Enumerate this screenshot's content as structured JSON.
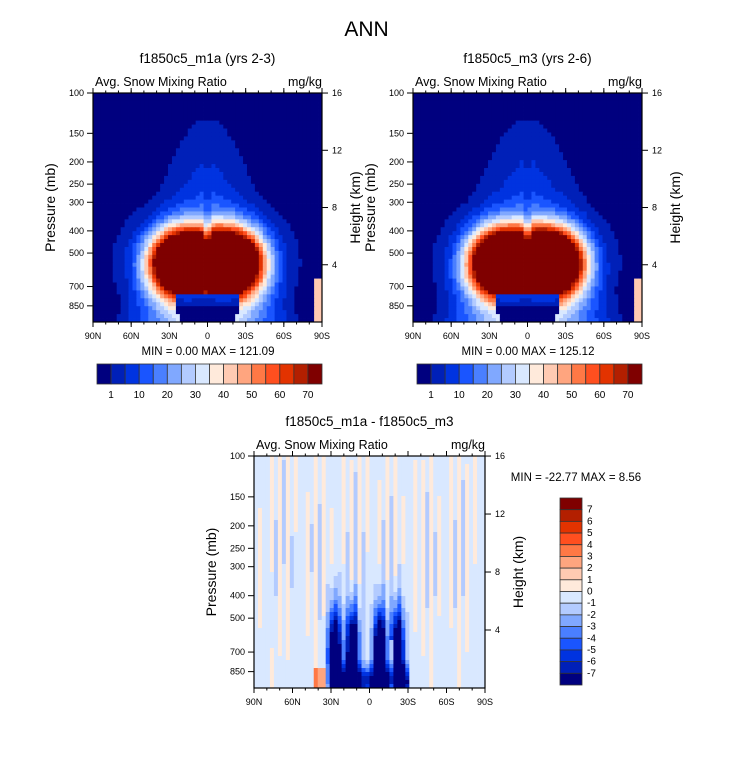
{
  "figure": {
    "main_title": "ANN"
  },
  "chart_data": [
    {
      "type": "heatmap",
      "id": "panel_m1a",
      "title": "f1850c5_m1a (yrs 2-3)",
      "left_string": "Avg. Snow Mixing Ratio",
      "right_string": "mg/kg",
      "xlabel": "",
      "ylabel": "Pressure (mb)",
      "ylabel_right": "Height (km)",
      "x_ticks": [
        "90N",
        "60N",
        "30N",
        "0",
        "30S",
        "60S",
        "90S"
      ],
      "x_range": [
        90,
        -90
      ],
      "y_ticks": [
        100,
        150,
        200,
        250,
        300,
        400,
        500,
        700,
        850
      ],
      "y_range_mb": [
        100,
        1000
      ],
      "y_right_ticks": [
        4,
        8,
        12,
        16
      ],
      "min": "0.00",
      "max": "121.09",
      "stats_text": "MIN =   0.00  MAX = 121.09",
      "field_description": "Snow maximum (>70 mg/kg) centered 500-700 mb spanning ~40N-40S with twin lobes; values decrease outward and upward to <1 mg/kg poleward and above 200 mb; low values below 700 mb between ~25N and ~25S",
      "colorbar": {
        "orientation": "horizontal",
        "labels": [
          "1",
          "10",
          "20",
          "30",
          "40",
          "50",
          "60",
          "70"
        ],
        "levels": [
          1,
          5,
          10,
          15,
          20,
          25,
          30,
          35,
          40,
          45,
          50,
          55,
          60,
          65,
          70
        ],
        "colors": [
          "#00007f",
          "#0020b8",
          "#0033e0",
          "#1a55ff",
          "#4a7fff",
          "#80a8ff",
          "#b3cbff",
          "#d9e8ff",
          "#ffeadb",
          "#ffcab2",
          "#ffa57f",
          "#ff7845",
          "#ff4f1f",
          "#e33300",
          "#b31f00",
          "#7f0000"
        ]
      }
    },
    {
      "type": "heatmap",
      "id": "panel_m3",
      "title": "f1850c5_m3 (yrs 2-6)",
      "left_string": "Avg. Snow Mixing Ratio",
      "right_string": "mg/kg",
      "xlabel": "",
      "ylabel": "Pressure (mb)",
      "ylabel_right": "Height (km)",
      "x_ticks": [
        "90N",
        "60N",
        "30N",
        "0",
        "30S",
        "60S",
        "90S"
      ],
      "x_range": [
        90,
        -90
      ],
      "y_ticks": [
        100,
        150,
        200,
        250,
        300,
        400,
        500,
        700,
        850
      ],
      "y_range_mb": [
        100,
        1000
      ],
      "y_right_ticks": [
        4,
        8,
        12,
        16
      ],
      "min": "0.00",
      "max": "125.12",
      "stats_text": "MIN =   0.00  MAX = 125.12",
      "field_description": "Nearly identical pattern to m1a with slightly larger maximum region",
      "colorbar": {
        "orientation": "horizontal",
        "labels": [
          "1",
          "10",
          "20",
          "30",
          "40",
          "50",
          "60",
          "70"
        ],
        "levels": [
          1,
          5,
          10,
          15,
          20,
          25,
          30,
          35,
          40,
          45,
          50,
          55,
          60,
          65,
          70
        ],
        "colors": [
          "#00007f",
          "#0020b8",
          "#0033e0",
          "#1a55ff",
          "#4a7fff",
          "#80a8ff",
          "#b3cbff",
          "#d9e8ff",
          "#ffeadb",
          "#ffcab2",
          "#ffa57f",
          "#ff7845",
          "#ff4f1f",
          "#e33300",
          "#b31f00",
          "#7f0000"
        ]
      }
    },
    {
      "type": "heatmap",
      "id": "panel_diff",
      "title": "f1850c5_m1a - f1850c5_m3",
      "left_string": "Avg. Snow Mixing Ratio",
      "right_string": "mg/kg",
      "xlabel": "",
      "ylabel": "Pressure (mb)",
      "ylabel_right": "Height (km)",
      "x_ticks": [
        "90N",
        "60N",
        "30N",
        "0",
        "30S",
        "60S",
        "90S"
      ],
      "x_range": [
        90,
        -90
      ],
      "y_ticks": [
        100,
        150,
        200,
        250,
        300,
        400,
        500,
        700,
        850
      ],
      "y_range_mb": [
        100,
        1000
      ],
      "y_right_ticks": [
        4,
        8,
        12,
        16
      ],
      "min": "-22.77",
      "max": "8.56",
      "stats_text": "MIN = -22.77  MAX =   8.56",
      "field_description": "Mostly near zero (-1..1); strong negative differences (< -7) in tropics/subtropics 30N-30S below 400 mb; small positive streaks scattered",
      "colorbar": {
        "orientation": "vertical",
        "labels": [
          "7",
          "6",
          "5",
          "4",
          "3",
          "2",
          "1",
          "0",
          "-1",
          "-2",
          "-3",
          "-4",
          "-5",
          "-6",
          "-7"
        ],
        "levels": [
          7,
          6,
          5,
          4,
          3,
          2,
          1,
          0,
          -1,
          -2,
          -3,
          -4,
          -5,
          -6,
          -7
        ],
        "colors": [
          "#7f0000",
          "#b31f00",
          "#e33300",
          "#ff4f1f",
          "#ff7845",
          "#ffa57f",
          "#ffcab2",
          "#ffeadb",
          "#d9e8ff",
          "#b3cbff",
          "#80a8ff",
          "#4a7fff",
          "#1a55ff",
          "#0033e0",
          "#0020b8",
          "#00007f"
        ]
      }
    }
  ]
}
